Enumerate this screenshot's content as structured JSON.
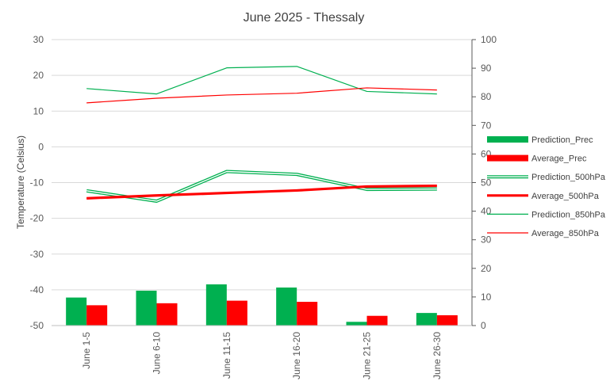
{
  "chart_data": {
    "type": "bar+line",
    "title": "June 2025 - Thessaly",
    "ylabel": "Temperature (Celsius)",
    "y2label": "",
    "categories": [
      "June 1-5",
      "June 6-10",
      "June 11-15",
      "June 16-20",
      "June 21-25",
      "June 26-30"
    ],
    "ylim": [
      -50,
      30
    ],
    "yticks": [
      30,
      20,
      10,
      0,
      -10,
      -20,
      -30,
      -40,
      -50
    ],
    "y2lim": [
      0,
      100
    ],
    "y2ticks": [
      100,
      90,
      80,
      70,
      60,
      50,
      40,
      30,
      20,
      10,
      0
    ],
    "grid": true,
    "legend_position": "right",
    "series": [
      {
        "name": "Prediction_Prec",
        "type": "bar",
        "axis": "right",
        "color": "#00b050",
        "values": [
          9.8,
          12.2,
          14.4,
          13.3,
          1.3,
          4.4
        ]
      },
      {
        "name": "Average_Prec",
        "type": "bar",
        "axis": "right",
        "color": "#ff0000",
        "values": [
          7.1,
          7.8,
          8.7,
          8.3,
          3.4,
          3.6
        ]
      },
      {
        "name": "Prediction_500hPa",
        "type": "line",
        "style": "double",
        "axis": "left",
        "color": "#00b050",
        "values": [
          -12.3,
          -15.2,
          -6.9,
          -7.7,
          -11.9,
          -11.8
        ]
      },
      {
        "name": "Average_500hPa",
        "type": "line",
        "style": "thick",
        "axis": "left",
        "color": "#ff0000",
        "values": [
          -14.4,
          -13.6,
          -12.9,
          -12.2,
          -11.1,
          -10.9
        ]
      },
      {
        "name": "Prediction_850hPa",
        "type": "line",
        "style": "thin",
        "axis": "left",
        "color": "#00b050",
        "values": [
          16.3,
          14.8,
          22.1,
          22.5,
          15.5,
          14.8
        ]
      },
      {
        "name": "Average_850hPa",
        "type": "line",
        "style": "thin",
        "axis": "left",
        "color": "#ff0000",
        "values": [
          12.3,
          13.6,
          14.5,
          15.0,
          16.5,
          15.9
        ]
      }
    ]
  }
}
